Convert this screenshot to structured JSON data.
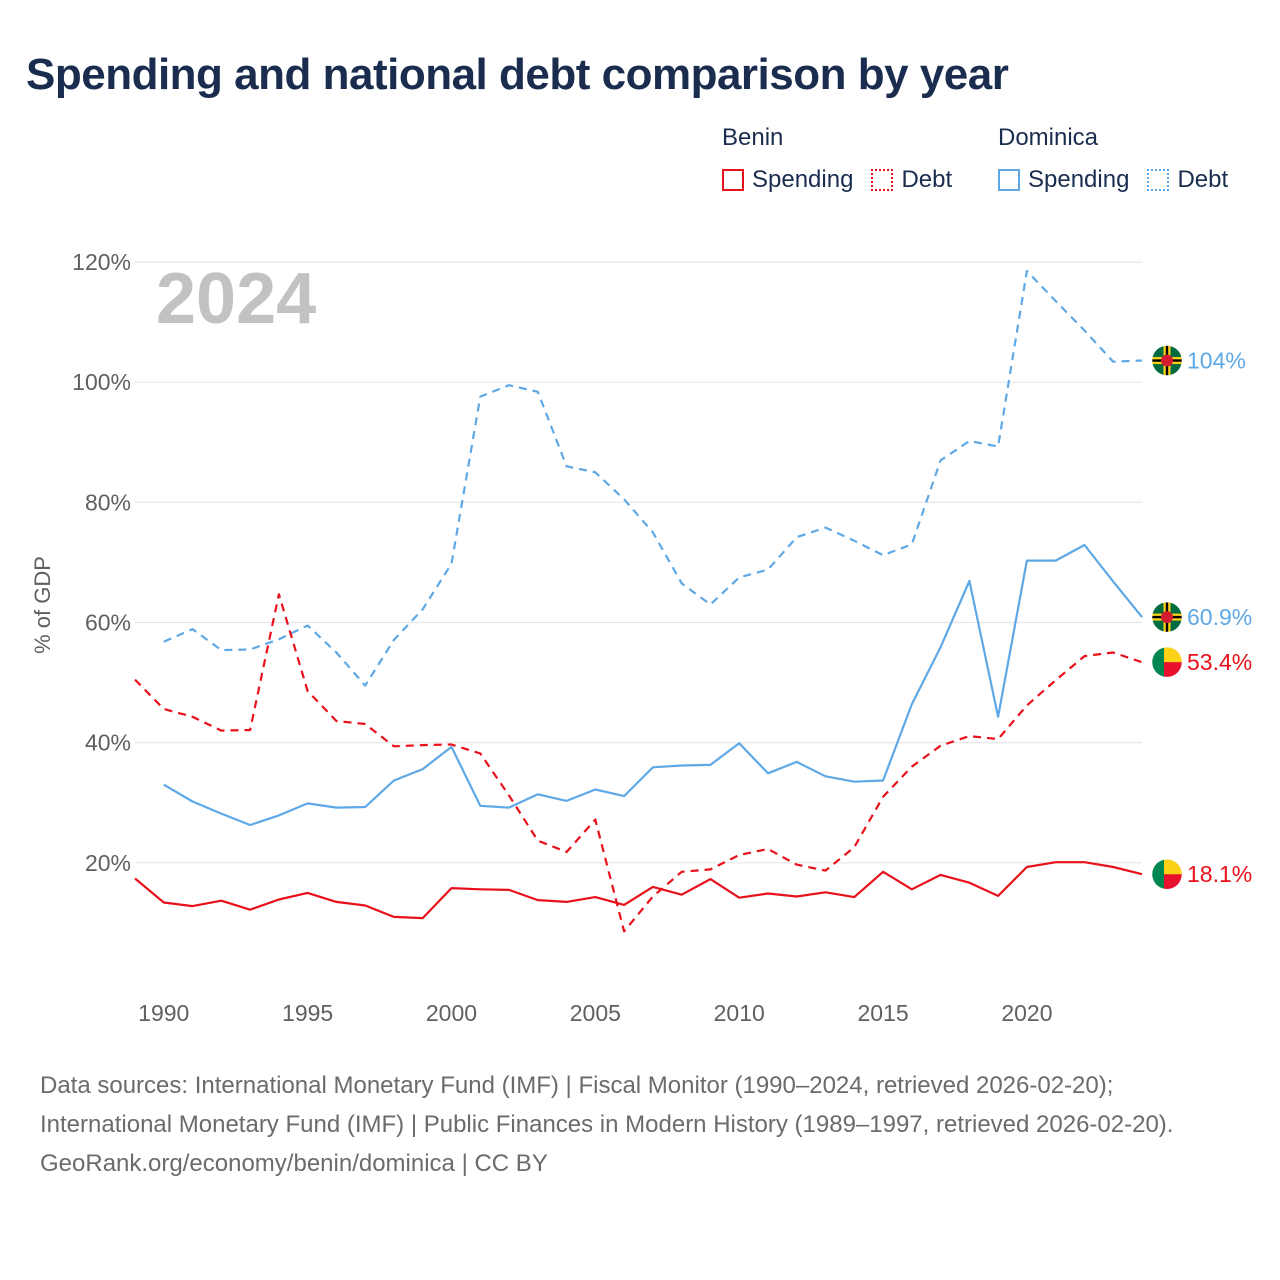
{
  "title": "Spending and national debt comparison by year",
  "legend": {
    "benin": {
      "name": "Benin",
      "spending": "Spending",
      "debt": "Debt"
    },
    "dominica": {
      "name": "Dominica",
      "spending": "Spending",
      "debt": "Debt"
    }
  },
  "year_watermark": "2024",
  "colors": {
    "benin": "#e8101a",
    "dominica": "#5ea8e6"
  },
  "chart_data": {
    "type": "line",
    "title": "Spending and national debt comparison by year",
    "xlabel": "",
    "ylabel": "% of GDP",
    "xlim": [
      1989,
      2024
    ],
    "ylim": [
      0,
      120
    ],
    "x_ticks": [
      1990,
      1995,
      2000,
      2005,
      2010,
      2015,
      2020
    ],
    "y_ticks": [
      20,
      40,
      60,
      80,
      100,
      120
    ],
    "y_tick_labels": [
      "20%",
      "40%",
      "60%",
      "80%",
      "100%",
      "120%"
    ],
    "series": [
      {
        "name": "Dominica Debt",
        "country": "Dominica",
        "kind": "debt",
        "color": "#5ea8e6",
        "dashed": true,
        "end_label": "104%",
        "x": [
          1990,
          1991,
          1992,
          1993,
          1994,
          1995,
          1996,
          1997,
          1998,
          1999,
          2000,
          2001,
          2002,
          2003,
          2004,
          2005,
          2006,
          2007,
          2008,
          2009,
          2010,
          2011,
          2012,
          2013,
          2014,
          2015,
          2016,
          2017,
          2018,
          2019,
          2020,
          2021,
          2022,
          2023,
          2024
        ],
        "values": [
          56.8,
          58.9,
          55.4,
          55.5,
          57.2,
          59.5,
          55.0,
          49.5,
          57.1,
          62.2,
          69.8,
          97.6,
          99.5,
          98.4,
          86.0,
          85.0,
          80.5,
          75.0,
          66.5,
          63.0,
          67.5,
          68.8,
          74.2,
          75.8,
          73.6,
          71.2,
          73.0,
          87.0,
          90.2,
          89.3,
          118.5,
          113.5,
          108.6,
          103.4,
          103.6
        ]
      },
      {
        "name": "Dominica Spending",
        "country": "Dominica",
        "kind": "spending",
        "color": "#5ea8e6",
        "dashed": false,
        "end_label": "60.9%",
        "x": [
          1990,
          1991,
          1992,
          1993,
          1994,
          1995,
          1996,
          1997,
          1998,
          1999,
          2000,
          2001,
          2002,
          2003,
          2004,
          2005,
          2006,
          2007,
          2008,
          2009,
          2010,
          2011,
          2012,
          2013,
          2014,
          2015,
          2016,
          2017,
          2018,
          2019,
          2020,
          2021,
          2022,
          2023,
          2024
        ],
        "values": [
          33.0,
          30.2,
          28.2,
          26.3,
          27.9,
          29.9,
          29.2,
          29.3,
          33.7,
          35.6,
          39.3,
          29.5,
          29.2,
          31.4,
          30.3,
          32.2,
          31.1,
          35.9,
          36.2,
          36.3,
          39.9,
          34.9,
          36.8,
          34.4,
          33.5,
          33.7,
          46.4,
          55.9,
          66.9,
          44.3,
          70.3,
          70.3,
          72.9,
          66.8,
          60.9
        ]
      },
      {
        "name": "Benin Debt",
        "country": "Benin",
        "kind": "debt",
        "color": "#e8101a",
        "dashed": true,
        "end_label": "53.4%",
        "x": [
          1989,
          1990,
          1991,
          1992,
          1993,
          1994,
          1995,
          1996,
          1997,
          1998,
          1999,
          2000,
          2001,
          2002,
          2003,
          2004,
          2005,
          2006,
          2007,
          2008,
          2009,
          2010,
          2011,
          2012,
          2013,
          2014,
          2015,
          2016,
          2017,
          2018,
          2019,
          2020,
          2021,
          2022,
          2023,
          2024
        ],
        "values": [
          50.5,
          45.6,
          44.3,
          42.0,
          42.1,
          64.7,
          48.6,
          43.6,
          43.1,
          39.4,
          39.6,
          39.7,
          38.2,
          31.2,
          23.7,
          21.8,
          27.2,
          8.6,
          14.4,
          18.5,
          18.9,
          21.3,
          22.3,
          19.7,
          18.7,
          22.6,
          31.0,
          36.0,
          39.5,
          41.1,
          40.6,
          46.2,
          50.4,
          54.4,
          55.0,
          53.4
        ]
      },
      {
        "name": "Benin Spending",
        "country": "Benin",
        "kind": "spending",
        "color": "#e8101a",
        "dashed": false,
        "end_label": "18.1%",
        "x": [
          1989,
          1990,
          1991,
          1992,
          1993,
          1994,
          1995,
          1996,
          1997,
          1998,
          1999,
          2000,
          2001,
          2002,
          2003,
          2004,
          2005,
          2006,
          2007,
          2008,
          2009,
          2010,
          2011,
          2012,
          2013,
          2014,
          2015,
          2016,
          2017,
          2018,
          2019,
          2020,
          2021,
          2022,
          2023,
          2024
        ],
        "values": [
          17.4,
          13.4,
          12.8,
          13.7,
          12.2,
          13.9,
          15.0,
          13.5,
          12.9,
          11.0,
          10.8,
          15.8,
          15.6,
          15.5,
          13.8,
          13.5,
          14.3,
          13.0,
          16.0,
          14.7,
          17.3,
          14.2,
          14.9,
          14.4,
          15.1,
          14.3,
          18.5,
          15.6,
          18.0,
          16.7,
          14.5,
          19.3,
          20.1,
          20.1,
          19.3,
          18.1
        ]
      }
    ]
  },
  "footer": {
    "sources": "Data sources: International Monetary Fund (IMF) | Fiscal Monitor (1990–2024, retrieved 2026-02-20); International Monetary Fund (IMF) | Public Finances in Modern History (1989–1997, retrieved 2026-02-20).",
    "credit": "GeoRank.org/economy/benin/dominica | CC BY"
  }
}
